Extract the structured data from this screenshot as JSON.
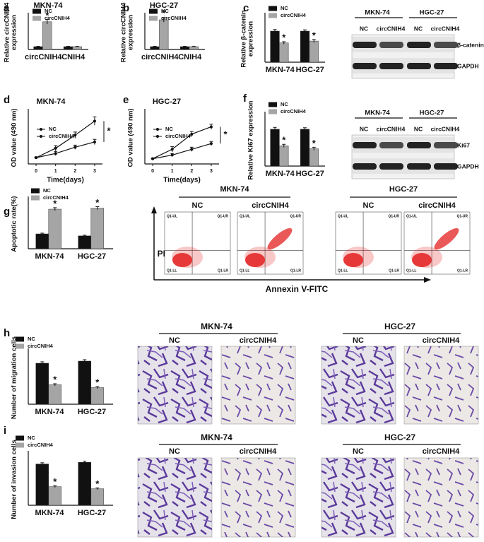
{
  "chart_data": [
    {
      "type": "bar",
      "panel": "a",
      "title": "MKN-74",
      "ylabel": [
        "Relative circCNIH4",
        "expression"
      ],
      "categories": [
        "circCNIH4",
        "CNIH4"
      ],
      "series": [
        {
          "name": "NC",
          "color": "#111111",
          "values": [
            1,
            1
          ],
          "errors": [
            0.1,
            0.1
          ]
        },
        {
          "name": "circCNIH4",
          "color": "#a5a5a5",
          "values": [
            9.8,
            1
          ],
          "errors": [
            0.8,
            0.1
          ]
        }
      ],
      "ylim": [
        0,
        12
      ],
      "annotations": [
        {
          "text": "*",
          "series": 1,
          "category": 0
        }
      ]
    },
    {
      "type": "bar",
      "panel": "b",
      "title": "HGC-27",
      "ylabel": [
        "Relative circCNIH4",
        "expression"
      ],
      "categories": [
        "circCNIH4",
        "CNIH4"
      ],
      "series": [
        {
          "name": "NC",
          "color": "#111111",
          "values": [
            1,
            1
          ],
          "errors": [
            0.1,
            0.1
          ]
        },
        {
          "name": "circCNIH4",
          "color": "#a5a5a5",
          "values": [
            10.5,
            1
          ],
          "errors": [
            0.8,
            0.1
          ]
        }
      ],
      "ylim": [
        0,
        12
      ],
      "annotations": [
        {
          "text": "*",
          "series": 1,
          "category": 0
        }
      ]
    },
    {
      "type": "bar",
      "panel": "c",
      "ylabel": [
        "Relative β-catenin",
        "expression"
      ],
      "categories": [
        "MKN-74",
        "HGC-27"
      ],
      "series": [
        {
          "name": "NC",
          "color": "#111111",
          "values": [
            1,
            1
          ],
          "errors": [
            0.05,
            0.04
          ]
        },
        {
          "name": "circCNIH4",
          "color": "#a5a5a5",
          "values": [
            0.62,
            0.68
          ],
          "errors": [
            0.04,
            0.05
          ]
        }
      ],
      "ylim": [
        0,
        1.5
      ],
      "annotations": [
        {
          "text": "*",
          "series": 1,
          "category": 0
        },
        {
          "text": "*",
          "series": 1,
          "category": 1
        }
      ]
    },
    {
      "type": "line",
      "panel": "d",
      "title": "MKN-74",
      "ylabel": [
        "OD value (490 nm)"
      ],
      "xlabel": "Time(days)",
      "x": [
        0,
        1,
        2,
        3
      ],
      "xlim": [
        -0.4,
        3.4
      ],
      "xticks": [
        0,
        1,
        2,
        3
      ],
      "ylim": [
        0,
        1
      ],
      "series": [
        {
          "name": "NC",
          "color": "#111111",
          "values": [
            0.12,
            0.3,
            0.55,
            0.82
          ],
          "errors": [
            0.01,
            0.05,
            0.06,
            0.08
          ]
        },
        {
          "name": "circCNIH4",
          "color": "#111111",
          "values": [
            0.12,
            0.2,
            0.32,
            0.42
          ],
          "errors": [
            0.01,
            0.04,
            0.04,
            0.05
          ]
        }
      ],
      "annotations": [
        {
          "text": "*"
        }
      ]
    },
    {
      "type": "line",
      "panel": "e",
      "title": "HGC-27",
      "ylabel": [
        "OD value (490 nm)"
      ],
      "xlabel": "Time(days)",
      "x": [
        0,
        1,
        2,
        3
      ],
      "xlim": [
        -0.4,
        3.4
      ],
      "xticks": [
        0,
        1,
        2,
        3
      ],
      "ylim": [
        0,
        1
      ],
      "series": [
        {
          "name": "NC",
          "color": "#111111",
          "values": [
            0.1,
            0.28,
            0.57,
            0.71
          ],
          "errors": [
            0.01,
            0.05,
            0.05,
            0.05
          ]
        },
        {
          "name": "circCNIH4",
          "color": "#111111",
          "values": [
            0.1,
            0.17,
            0.28,
            0.39
          ],
          "errors": [
            0.01,
            0.03,
            0.04,
            0.04
          ]
        }
      ],
      "annotations": [
        {
          "text": "*"
        }
      ]
    },
    {
      "type": "bar",
      "panel": "f",
      "ylabel": [
        "Relative Ki67 expression"
      ],
      "categories": [
        "MKN-74",
        "HGC-27"
      ],
      "series": [
        {
          "name": "NC",
          "color": "#111111",
          "values": [
            1,
            1
          ],
          "errors": [
            0.05,
            0.04
          ]
        },
        {
          "name": "circCNIH4",
          "color": "#a5a5a5",
          "values": [
            0.55,
            0.47
          ],
          "errors": [
            0.04,
            0.04
          ]
        }
      ],
      "ylim": [
        0,
        1.4
      ],
      "annotations": [
        {
          "text": "*",
          "series": 1,
          "category": 0
        },
        {
          "text": "*",
          "series": 1,
          "category": 1
        }
      ]
    },
    {
      "type": "bar",
      "panel": "g",
      "ylabel": [
        "Apoptotic rate(%)"
      ],
      "categories": [
        "MKN-74",
        "HGC-27"
      ],
      "series": [
        {
          "name": "NC",
          "color": "#111111",
          "values": [
            6,
            5.2
          ],
          "errors": [
            0.3,
            0.3
          ]
        },
        {
          "name": "circCNIH4",
          "color": "#a5a5a5",
          "values": [
            16,
            16.4
          ],
          "errors": [
            0.6,
            0.6
          ]
        }
      ],
      "ylim": [
        0,
        20
      ],
      "annotations": [
        {
          "text": "*",
          "series": 1,
          "category": 0
        },
        {
          "text": "*",
          "series": 1,
          "category": 1
        }
      ]
    },
    {
      "type": "bar",
      "panel": "h",
      "ylabel": [
        "Number of migration cells"
      ],
      "categories": [
        "MKN-74",
        "HGC-27"
      ],
      "series": [
        {
          "name": "NC",
          "color": "#111111",
          "values": [
            116,
            122
          ],
          "errors": [
            4,
            4
          ]
        },
        {
          "name": "circCNIH4",
          "color": "#a5a5a5",
          "values": [
            55,
            47
          ],
          "errors": [
            3,
            3
          ]
        }
      ],
      "ylim": [
        0,
        150
      ],
      "annotations": [
        {
          "text": "*",
          "series": 1,
          "category": 0
        },
        {
          "text": "*",
          "series": 1,
          "category": 1
        }
      ]
    },
    {
      "type": "bar",
      "panel": "i",
      "ylabel": [
        "Number of invasion cells"
      ],
      "categories": [
        "MKN-74",
        "HGC-27"
      ],
      "series": [
        {
          "name": "NC",
          "color": "#111111",
          "values": [
            100,
            104
          ],
          "errors": [
            3,
            3
          ]
        },
        {
          "name": "circCNIH4",
          "color": "#a5a5a5",
          "values": [
            45,
            40
          ],
          "errors": [
            2,
            2
          ]
        }
      ],
      "ylim": [
        0,
        125
      ],
      "annotations": [
        {
          "text": "*",
          "series": 1,
          "category": 0
        },
        {
          "text": "*",
          "series": 1,
          "category": 1
        }
      ]
    }
  ],
  "blots": [
    {
      "groups": [
        "MKN-74",
        "HGC-27"
      ],
      "lanes": [
        "NC",
        "circCNIH4",
        "NC",
        "circCNIH4"
      ],
      "rows": [
        "β-catenin",
        "GAPDH"
      ]
    },
    {
      "groups": [
        "MKN-74",
        "HGC-27"
      ],
      "lanes": [
        "NC",
        "circCNIH4",
        "NC",
        "circCNIH4"
      ],
      "rows": [
        "Ki67",
        "GAPDH"
      ]
    }
  ],
  "flow": {
    "groups": [
      {
        "title": "MKN-74",
        "conditions": [
          "NC",
          "circCNIH4"
        ]
      },
      {
        "title": "HGC-27",
        "conditions": [
          "NC",
          "circCNIH4"
        ]
      }
    ],
    "quadrants": [
      "Q1-UL",
      "Q1-UR",
      "Q1-LL",
      "Q1-LR"
    ],
    "ylabel": "PI",
    "xlabel": "Annexin V-FITC"
  },
  "micrographs": [
    {
      "groups": [
        {
          "title": "MKN-74",
          "conditions": [
            "NC",
            "circCNIH4"
          ]
        },
        {
          "title": "HGC-27",
          "conditions": [
            "NC",
            "circCNIH4"
          ]
        }
      ]
    },
    {
      "groups": [
        {
          "title": "MKN-74",
          "conditions": [
            "NC",
            "circCNIH4"
          ]
        },
        {
          "title": "HGC-27",
          "conditions": [
            "NC",
            "circCNIH4"
          ]
        }
      ]
    }
  ]
}
